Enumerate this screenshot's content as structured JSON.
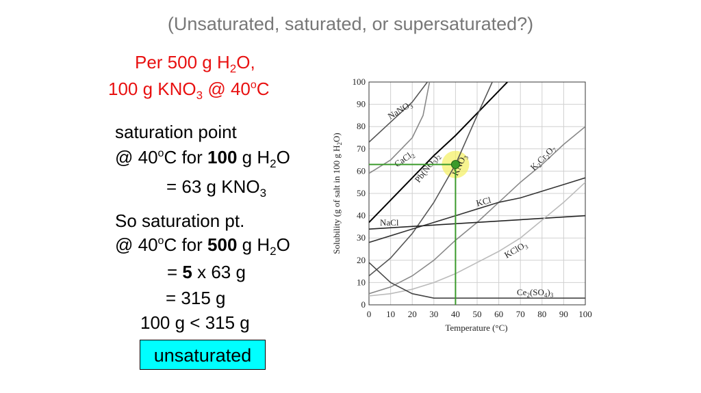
{
  "heading": "(Unsaturated, saturated, or supersaturated?)",
  "given": [
    [
      "Per 500 g H",
      "2",
      "O,"
    ],
    [
      "100 g KNO",
      "3",
      " @ 40",
      "o",
      "C"
    ]
  ],
  "step1": [
    [
      "saturation point"
    ],
    [
      "@ 40",
      "o",
      "C for ",
      "100",
      " g H",
      "2",
      "O"
    ],
    [
      "= 63 g KNO",
      "3"
    ]
  ],
  "step2": [
    [
      "So saturation pt."
    ],
    [
      "@ 40",
      "o",
      "C for ",
      "500",
      " g H",
      "2",
      "O"
    ],
    [
      "= ",
      "5",
      " x 63 g"
    ],
    [
      "= 315 g"
    ],
    [
      "100 g < 315 g"
    ]
  ],
  "answer": "unsaturated",
  "chart_data": {
    "type": "line",
    "xlabel": "Temperature (°C)",
    "ylabel": [
      "Solubility (g of salt in 100 g H",
      "2",
      "O)"
    ],
    "xlim": [
      0,
      100
    ],
    "ylim": [
      0,
      100
    ],
    "xticks": [
      0,
      10,
      20,
      30,
      40,
      50,
      60,
      70,
      80,
      90,
      100
    ],
    "yticks": [
      0,
      10,
      20,
      30,
      40,
      50,
      60,
      70,
      80,
      90,
      100
    ],
    "grid": true,
    "series": [
      {
        "name": "NaNO3",
        "color": "#555555",
        "x": [
          0,
          10,
          20,
          27
        ],
        "values": [
          73,
          82,
          91,
          100
        ]
      },
      {
        "name": "CaCl2",
        "color": "#888888",
        "x": [
          0,
          10,
          20,
          25,
          28
        ],
        "values": [
          59,
          65,
          75,
          85,
          100
        ]
      },
      {
        "name": "Pb(NO3)2",
        "color": "#000000",
        "x": [
          0,
          10,
          20,
          30,
          40,
          50,
          60,
          64
        ],
        "values": [
          37,
          47,
          57,
          67,
          76,
          86,
          96,
          100
        ]
      },
      {
        "name": "KNO3",
        "color": "#555555",
        "x": [
          0,
          10,
          20,
          30,
          40,
          50,
          57
        ],
        "values": [
          13,
          21,
          32,
          46,
          63,
          85,
          100
        ]
      },
      {
        "name": "K2Cr2O7",
        "color": "#888888",
        "x": [
          0,
          10,
          20,
          30,
          40,
          50,
          60,
          70,
          80,
          90,
          100
        ],
        "values": [
          5,
          8,
          13,
          20,
          29,
          37,
          46,
          55,
          63,
          72,
          80
        ]
      },
      {
        "name": "KCl",
        "color": "#333333",
        "x": [
          0,
          10,
          20,
          30,
          40,
          50,
          60,
          70,
          80,
          90,
          100
        ],
        "values": [
          28,
          31,
          34,
          37,
          40,
          43,
          46,
          48,
          51,
          54,
          57
        ]
      },
      {
        "name": "NaCl",
        "color": "#222222",
        "x": [
          0,
          100
        ],
        "values": [
          34,
          40
        ]
      },
      {
        "name": "KClO3",
        "color": "#bbbbbb",
        "x": [
          0,
          10,
          20,
          30,
          40,
          50,
          60,
          70,
          80,
          90,
          100
        ],
        "values": [
          4,
          5,
          7,
          10,
          14,
          19,
          24,
          30,
          38,
          46,
          55
        ]
      },
      {
        "name": "Ce2(SO4)3",
        "color": "#444444",
        "x": [
          0,
          10,
          20,
          30,
          40,
          50,
          60,
          70,
          80,
          90,
          100
        ],
        "values": [
          19,
          10,
          5,
          3,
          3,
          3,
          3,
          3,
          3,
          3,
          3
        ]
      }
    ],
    "point": {
      "x": 40,
      "y": 63,
      "color": "#3a9a2a"
    }
  }
}
